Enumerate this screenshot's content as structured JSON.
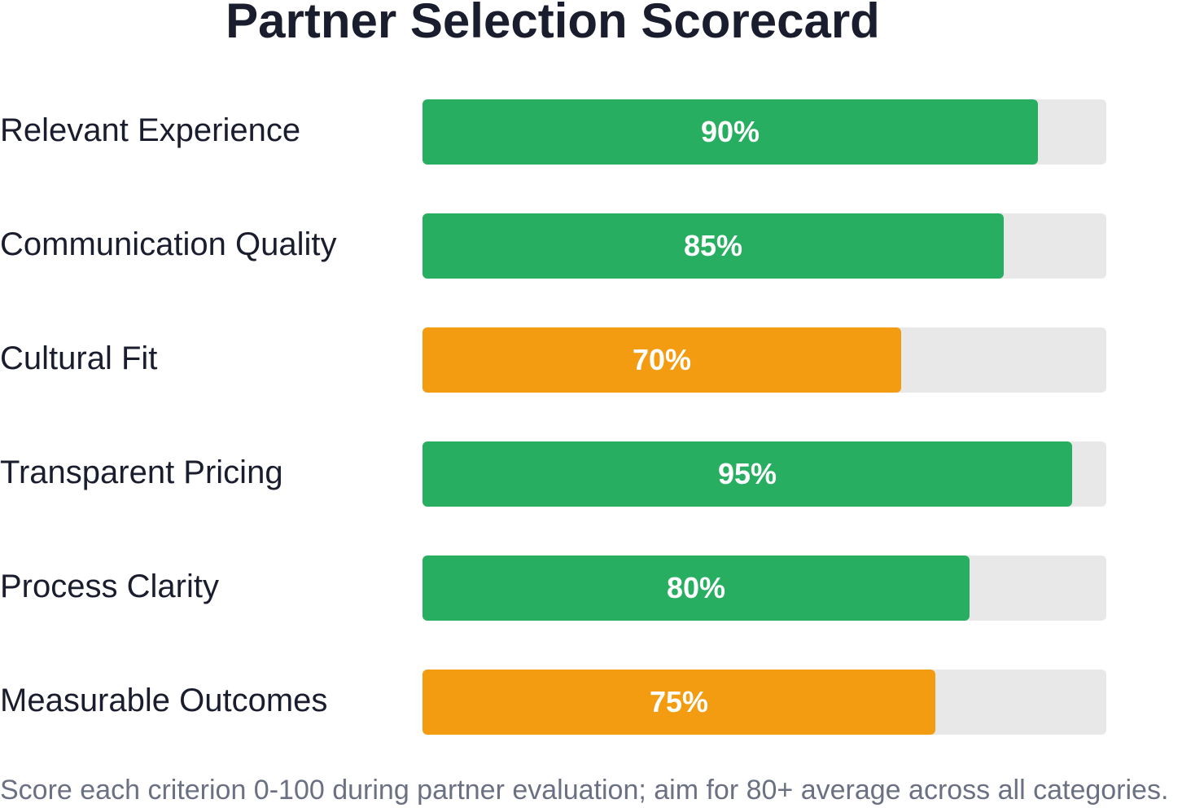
{
  "chart_data": {
    "type": "bar",
    "orientation": "horizontal",
    "title": "Partner Selection Scorecard",
    "categories": [
      "Relevant Experience",
      "Communication Quality",
      "Cultural Fit",
      "Transparent Pricing",
      "Process Clarity",
      "Measurable Outcomes"
    ],
    "values": [
      90,
      85,
      70,
      95,
      80,
      75
    ],
    "value_labels": [
      "90%",
      "85%",
      "70%",
      "95%",
      "80%",
      "75%"
    ],
    "bar_colors": [
      "#27ae60",
      "#27ae60",
      "#f39c12",
      "#27ae60",
      "#27ae60",
      "#f39c12"
    ],
    "track_color": "#e8e8e8",
    "xlim": [
      0,
      100
    ],
    "grid": false,
    "footnote": "Score each criterion 0-100 during partner evaluation; aim for 80+ average across all categories."
  }
}
